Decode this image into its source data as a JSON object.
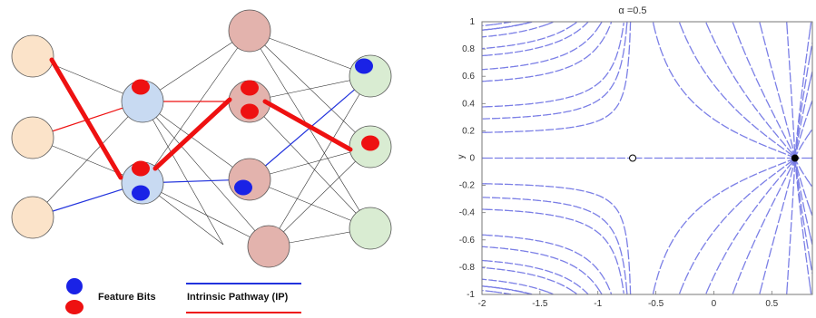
{
  "legend": {
    "feature_bits_label": "Feature Bits",
    "pathway_label": "Intrinsic Pathway (IP)"
  },
  "colors": {
    "input_node": "#fbe3c9",
    "hidden1_node": "#c8daf2",
    "hidden2_node": "#e3b3ad",
    "output_node": "#d9ecd2",
    "feature_blue": "#1a22e6",
    "feature_red": "#ee1111",
    "pathway_red": "#ee1111",
    "pathway_blue": "#2233dd",
    "stream": "#7b7fe6"
  },
  "network": {
    "layers": [
      "input",
      "hidden1",
      "hidden2",
      "output"
    ],
    "nodes": [
      {
        "id": "i1",
        "layer": "input"
      },
      {
        "id": "i2",
        "layer": "input"
      },
      {
        "id": "i3",
        "layer": "input"
      },
      {
        "id": "h1a",
        "layer": "hidden1",
        "bits": [
          "red"
        ]
      },
      {
        "id": "h1b",
        "layer": "hidden1",
        "bits": [
          "red",
          "blue"
        ]
      },
      {
        "id": "h2a",
        "layer": "hidden2"
      },
      {
        "id": "h2b",
        "layer": "hidden2",
        "bits": [
          "red",
          "red"
        ]
      },
      {
        "id": "h2c",
        "layer": "hidden2",
        "bits": [
          "blue"
        ]
      },
      {
        "id": "h2d",
        "layer": "hidden2"
      },
      {
        "id": "o1",
        "layer": "output",
        "bits": [
          "blue"
        ]
      },
      {
        "id": "o2",
        "layer": "output",
        "bits": [
          "red"
        ]
      },
      {
        "id": "o3",
        "layer": "output"
      }
    ],
    "thick_path": [
      "i1",
      "h1b",
      "h2b",
      "o2"
    ],
    "red_edges": [
      [
        "i2",
        "h1a"
      ],
      [
        "h1a",
        "h2b"
      ]
    ],
    "blue_edges": [
      [
        "i3",
        "h1b"
      ],
      [
        "h1b",
        "h2c"
      ],
      [
        "h2c",
        "o1"
      ]
    ]
  },
  "chart_data": {
    "type": "streamplot",
    "title": "α =0.5",
    "xlabel": "",
    "ylabel": "y",
    "xlim": [
      -2,
      0.85
    ],
    "ylim": [
      -1,
      1
    ],
    "xticks": [
      "-2",
      "-1.5",
      "-1",
      "-0.5",
      "0",
      "0.5"
    ],
    "xtick_values": [
      -2,
      -1.5,
      -1,
      -0.5,
      0,
      0.5
    ],
    "yticks": [
      "1",
      "0.8",
      "0.6",
      "0.4",
      "0.2",
      "0",
      "-0.2",
      "-0.4",
      "-0.6",
      "-0.8",
      "-1"
    ],
    "ytick_values": [
      1,
      0.8,
      0.6,
      0.4,
      0.2,
      0,
      -0.2,
      -0.4,
      -0.6,
      -0.8,
      -1
    ],
    "fixed_points": [
      {
        "x": -0.7,
        "y": 0,
        "style": "open"
      },
      {
        "x": 0.7,
        "y": 0,
        "style": "filled"
      }
    ]
  }
}
